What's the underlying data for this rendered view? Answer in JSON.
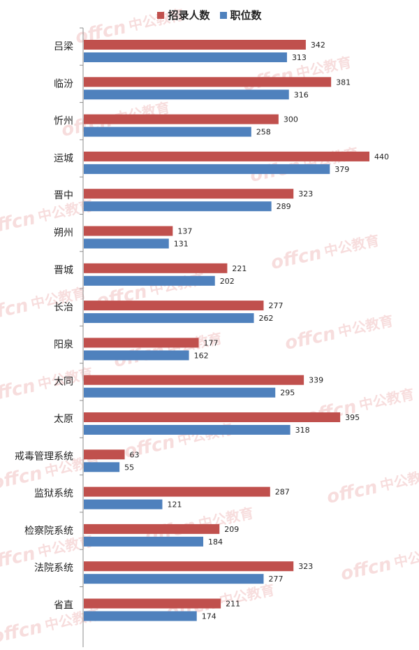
{
  "chart_data": {
    "type": "bar",
    "orientation": "horizontal",
    "categories": [
      "吕梁",
      "临汾",
      "忻州",
      "运城",
      "晋中",
      "朔州",
      "晋城",
      "长治",
      "阳泉",
      "大同",
      "太原",
      "戒毒管理系统",
      "监狱系统",
      "检察院系统",
      "法院系统",
      "省直"
    ],
    "series": [
      {
        "name": "招录人数",
        "color": "#c0504d",
        "values": [
          342,
          381,
          300,
          440,
          323,
          137,
          221,
          277,
          177,
          339,
          395,
          63,
          287,
          209,
          323,
          211
        ]
      },
      {
        "name": "职位数",
        "color": "#4f81bd",
        "values": [
          313,
          316,
          258,
          379,
          289,
          131,
          202,
          262,
          162,
          295,
          318,
          55,
          121,
          184,
          277,
          174
        ]
      }
    ],
    "xlim": [
      0,
      480
    ],
    "grid": false,
    "legend": "top-center"
  },
  "watermark": {
    "brand": "offcn",
    "text": "中公教育"
  }
}
